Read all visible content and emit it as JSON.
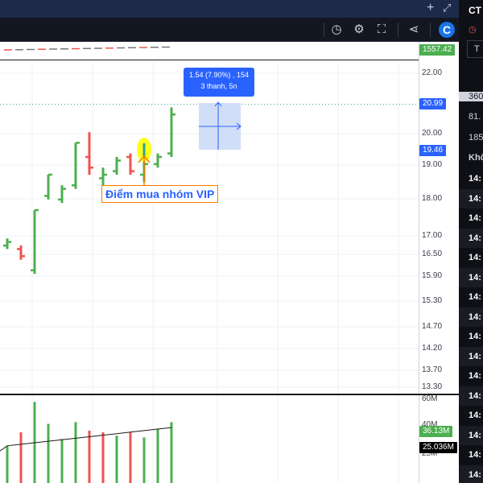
{
  "toolbar": {
    "plus_icon": "plus-icon",
    "expand_icon": "expand-icon"
  },
  "overview_value": "1557.42",
  "price_axis": {
    "ticks": [
      "22.00",
      "20.00",
      "19.00",
      "18.00",
      "17.00",
      "16.50",
      "15.90",
      "15.30",
      "14.70",
      "14.20",
      "13.70",
      "13.30"
    ],
    "current_tag": "20.99",
    "crosshair_tag": "19.46"
  },
  "volume_axis": {
    "ticks": [
      "60M",
      "40M",
      "25M"
    ],
    "volume_tag": "36.13M",
    "ma_tag": "25.036M"
  },
  "measure_tooltip": {
    "line1": "1.54 (7.90%) , 154",
    "line2": "3 thanh, 5n"
  },
  "annotation": {
    "label": "Điểm mua nhóm VIP"
  },
  "right_panel": {
    "symbol": "CT",
    "tab": "T",
    "stats": [
      "360",
      "81.",
      "185"
    ],
    "table_header": "Khô",
    "times": [
      "14:",
      "14:",
      "14:",
      "14:",
      "14:",
      "14:",
      "14:",
      "14:",
      "14:",
      "14:",
      "14:",
      "14:",
      "14:",
      "14:",
      "14:",
      "14:"
    ]
  },
  "colors": {
    "up": "#26a69a",
    "up_bar": "#4caf50",
    "down": "#ef5350",
    "tag_blue": "#2962ff",
    "panel_dark": "#0f1016",
    "highlight": "#ffff00"
  },
  "chart_data": {
    "type": "ohlc",
    "ylim": [
      13.3,
      22.3
    ],
    "bars": [
      {
        "o": 17.3,
        "h": 17.5,
        "l": 17.2,
        "c": 17.4
      },
      {
        "o": 17.2,
        "h": 17.3,
        "l": 16.9,
        "c": 17.0
      },
      {
        "o": 16.6,
        "h": 18.3,
        "l": 16.5,
        "c": 18.3
      },
      {
        "o": 18.7,
        "h": 19.3,
        "l": 18.6,
        "c": 19.3
      },
      {
        "o": 18.6,
        "h": 19.0,
        "l": 18.5,
        "c": 18.9
      },
      {
        "o": 19.0,
        "h": 20.2,
        "l": 18.9,
        "c": 20.2
      },
      {
        "o": 19.8,
        "h": 20.5,
        "l": 19.3,
        "c": 19.5
      },
      {
        "o": 19.2,
        "h": 19.5,
        "l": 18.9,
        "c": 19.3
      },
      {
        "o": 19.4,
        "h": 19.8,
        "l": 19.3,
        "c": 19.7
      },
      {
        "o": 19.8,
        "h": 19.9,
        "l": 19.3,
        "c": 19.4
      },
      {
        "o": 19.3,
        "h": 19.7,
        "l": 19.1,
        "c": 19.6
      },
      {
        "o": 19.6,
        "h": 19.9,
        "l": 19.5,
        "c": 19.8
      },
      {
        "o": 19.9,
        "h": 21.2,
        "l": 19.8,
        "c": 21.0
      }
    ],
    "volume": [
      {
        "v": 22,
        "up": true
      },
      {
        "v": 30,
        "up": false
      },
      {
        "v": 48,
        "up": true
      },
      {
        "v": 35,
        "up": true
      },
      {
        "v": 26,
        "up": true
      },
      {
        "v": 36,
        "up": true
      },
      {
        "v": 31,
        "up": false
      },
      {
        "v": 30,
        "up": false
      },
      {
        "v": 28,
        "up": true
      },
      {
        "v": 30,
        "up": false
      },
      {
        "v": 27,
        "up": true
      },
      {
        "v": 32,
        "up": true
      },
      {
        "v": 36,
        "up": true
      }
    ]
  }
}
